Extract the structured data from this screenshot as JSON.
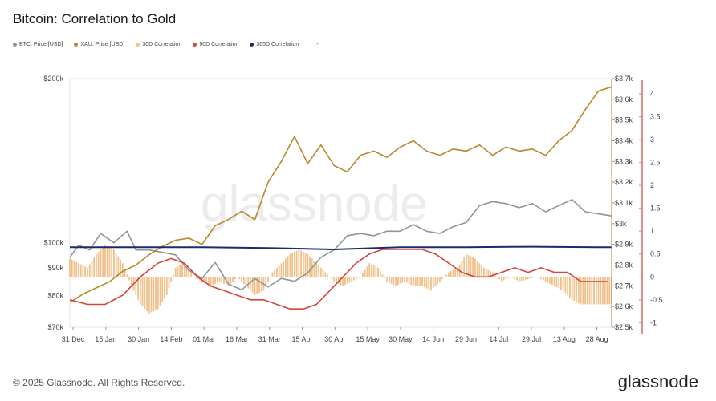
{
  "title": "Bitcoin: Correlation to Gold",
  "legend": [
    {
      "label": "BTC: Price [USD]",
      "color": "#8e969b"
    },
    {
      "label": "XAU: Price [USD]",
      "color": "#b8892a"
    },
    {
      "label": "30D Correlation",
      "color": "#f2c08a"
    },
    {
      "label": "90D Correlation",
      "color": "#d8433b"
    },
    {
      "label": "365D Correlation",
      "color": "#1c2b6e"
    },
    {
      "label": "-",
      "color": "transparent"
    }
  ],
  "watermark": "glassnode",
  "footer": "© 2025 Glassnode. All Rights Reserved.",
  "brand": "glassnode",
  "chart_data": {
    "type": "line",
    "x_ticks": [
      "31 Dec",
      "15 Jan",
      "30 Jan",
      "14 Feb",
      "01 Mar",
      "16 Mar",
      "31 Mar",
      "15 Apr",
      "30 Apr",
      "15 May",
      "30 May",
      "14 Jun",
      "29 Jun",
      "14 Jul",
      "29 Jul",
      "13 Aug",
      "28 Aug"
    ],
    "left_axis": {
      "scale": "log",
      "ticks": [
        "$70k",
        "$80k",
        "$90k",
        "$100k",
        "$200k"
      ],
      "tick_values": [
        70000,
        80000,
        90000,
        100000,
        200000
      ],
      "range": [
        70000,
        200000
      ]
    },
    "mid_axis": {
      "ticks": [
        "$2.5k",
        "$2.6k",
        "$2.7k",
        "$2.8k",
        "$2.9k",
        "$3k",
        "$3.1k",
        "$3.2k",
        "$3.3k",
        "$3.4k",
        "$3.5k",
        "$3.6k",
        "$3.7k"
      ],
      "range": [
        2500,
        3700
      ]
    },
    "right_axis": {
      "ticks": [
        "-1",
        "-0.5",
        "0",
        "0.5",
        "1",
        "1.5",
        "2",
        "2.5",
        "3",
        "3.5",
        "4"
      ],
      "range": [
        -1.1,
        4.3
      ]
    },
    "series": [
      {
        "name": "BTC: Price [USD]",
        "axis": "left",
        "color": "#8e969b",
        "points": [
          [
            0,
            94000
          ],
          [
            4,
            99000
          ],
          [
            9,
            97000
          ],
          [
            14,
            104000
          ],
          [
            20,
            100000
          ],
          [
            26,
            105000
          ],
          [
            30,
            97000
          ],
          [
            36,
            97000
          ],
          [
            42,
            96000
          ],
          [
            48,
            95000
          ],
          [
            54,
            89000
          ],
          [
            60,
            86000
          ],
          [
            66,
            92000
          ],
          [
            72,
            84000
          ],
          [
            78,
            82000
          ],
          [
            84,
            86000
          ],
          [
            90,
            83000
          ],
          [
            96,
            86000
          ],
          [
            102,
            85000
          ],
          [
            108,
            88000
          ],
          [
            114,
            94000
          ],
          [
            120,
            97000
          ],
          [
            126,
            103000
          ],
          [
            132,
            104000
          ],
          [
            138,
            103000
          ],
          [
            144,
            105000
          ],
          [
            150,
            105000
          ],
          [
            156,
            108000
          ],
          [
            162,
            105000
          ],
          [
            168,
            104000
          ],
          [
            174,
            107000
          ],
          [
            180,
            109000
          ],
          [
            186,
            117000
          ],
          [
            192,
            119000
          ],
          [
            198,
            118000
          ],
          [
            204,
            116000
          ],
          [
            210,
            118000
          ],
          [
            216,
            114000
          ],
          [
            222,
            117000
          ],
          [
            228,
            120000
          ],
          [
            234,
            114000
          ],
          [
            240,
            113000
          ],
          [
            246,
            112000
          ]
        ]
      },
      {
        "name": "XAU: Price [USD]",
        "axis": "mid",
        "color": "#b8892a",
        "points": [
          [
            0,
            2620
          ],
          [
            6,
            2660
          ],
          [
            12,
            2690
          ],
          [
            18,
            2720
          ],
          [
            24,
            2770
          ],
          [
            30,
            2800
          ],
          [
            36,
            2850
          ],
          [
            42,
            2890
          ],
          [
            48,
            2920
          ],
          [
            54,
            2930
          ],
          [
            60,
            2900
          ],
          [
            66,
            2990
          ],
          [
            72,
            3020
          ],
          [
            78,
            3060
          ],
          [
            84,
            3020
          ],
          [
            90,
            3200
          ],
          [
            96,
            3300
          ],
          [
            102,
            3420
          ],
          [
            108,
            3290
          ],
          [
            114,
            3380
          ],
          [
            120,
            3280
          ],
          [
            126,
            3250
          ],
          [
            132,
            3330
          ],
          [
            138,
            3350
          ],
          [
            144,
            3320
          ],
          [
            150,
            3370
          ],
          [
            156,
            3400
          ],
          [
            162,
            3350
          ],
          [
            168,
            3330
          ],
          [
            174,
            3360
          ],
          [
            180,
            3350
          ],
          [
            186,
            3380
          ],
          [
            192,
            3330
          ],
          [
            198,
            3370
          ],
          [
            204,
            3350
          ],
          [
            210,
            3360
          ],
          [
            216,
            3330
          ],
          [
            222,
            3400
          ],
          [
            228,
            3450
          ],
          [
            234,
            3550
          ],
          [
            240,
            3640
          ],
          [
            246,
            3660
          ]
        ]
      },
      {
        "name": "30D Correlation",
        "axis": "right",
        "color": "#f2c08a",
        "type": "bar",
        "points": [
          [
            0,
            0.4
          ],
          [
            4,
            0.3
          ],
          [
            8,
            0.2
          ],
          [
            12,
            0.5
          ],
          [
            16,
            0.7
          ],
          [
            20,
            0.6
          ],
          [
            24,
            0.3
          ],
          [
            28,
            -0.2
          ],
          [
            32,
            -0.6
          ],
          [
            36,
            -0.8
          ],
          [
            40,
            -0.7
          ],
          [
            44,
            -0.4
          ],
          [
            48,
            0.2
          ],
          [
            52,
            0.3
          ],
          [
            56,
            0.0
          ],
          [
            60,
            -0.1
          ],
          [
            64,
            -0.2
          ],
          [
            68,
            -0.1
          ],
          [
            72,
            -0.2
          ],
          [
            76,
            0.0
          ],
          [
            80,
            -0.2
          ],
          [
            84,
            -0.4
          ],
          [
            88,
            -0.3
          ],
          [
            92,
            0.1
          ],
          [
            96,
            0.3
          ],
          [
            100,
            0.5
          ],
          [
            104,
            0.6
          ],
          [
            108,
            0.5
          ],
          [
            112,
            0.3
          ],
          [
            116,
            0.1
          ],
          [
            120,
            -0.1
          ],
          [
            124,
            -0.2
          ],
          [
            128,
            -0.1
          ],
          [
            132,
            0.0
          ],
          [
            136,
            0.3
          ],
          [
            140,
            0.2
          ],
          [
            144,
            -0.1
          ],
          [
            148,
            -0.2
          ],
          [
            152,
            -0.1
          ],
          [
            156,
            -0.2
          ],
          [
            160,
            -0.2
          ],
          [
            164,
            -0.3
          ],
          [
            168,
            -0.1
          ],
          [
            172,
            0.1
          ],
          [
            176,
            0.2
          ],
          [
            180,
            0.5
          ],
          [
            184,
            0.4
          ],
          [
            188,
            0.2
          ],
          [
            192,
            0.1
          ],
          [
            196,
            -0.1
          ],
          [
            200,
            0.0
          ],
          [
            204,
            -0.1
          ],
          [
            208,
            -0.05
          ],
          [
            212,
            0.0
          ],
          [
            216,
            -0.1
          ],
          [
            220,
            -0.2
          ],
          [
            224,
            -0.3
          ],
          [
            228,
            -0.5
          ],
          [
            232,
            -0.6
          ],
          [
            236,
            -0.6
          ],
          [
            240,
            -0.6
          ],
          [
            246,
            -0.6
          ]
        ]
      },
      {
        "name": "90D Correlation",
        "axis": "right",
        "color": "#d8433b",
        "points": [
          [
            0,
            -0.5
          ],
          [
            8,
            -0.6
          ],
          [
            16,
            -0.6
          ],
          [
            24,
            -0.4
          ],
          [
            32,
            0.0
          ],
          [
            40,
            0.3
          ],
          [
            46,
            0.4
          ],
          [
            52,
            0.3
          ],
          [
            58,
            0.0
          ],
          [
            64,
            -0.2
          ],
          [
            70,
            -0.3
          ],
          [
            76,
            -0.4
          ],
          [
            82,
            -0.5
          ],
          [
            88,
            -0.5
          ],
          [
            94,
            -0.6
          ],
          [
            100,
            -0.7
          ],
          [
            106,
            -0.7
          ],
          [
            112,
            -0.6
          ],
          [
            118,
            -0.3
          ],
          [
            124,
            0.0
          ],
          [
            130,
            0.3
          ],
          [
            136,
            0.5
          ],
          [
            142,
            0.6
          ],
          [
            148,
            0.6
          ],
          [
            154,
            0.6
          ],
          [
            160,
            0.6
          ],
          [
            166,
            0.5
          ],
          [
            172,
            0.3
          ],
          [
            178,
            0.1
          ],
          [
            184,
            0.0
          ],
          [
            190,
            0.0
          ],
          [
            196,
            0.1
          ],
          [
            202,
            0.2
          ],
          [
            208,
            0.1
          ],
          [
            214,
            0.2
          ],
          [
            220,
            0.1
          ],
          [
            226,
            0.1
          ],
          [
            232,
            -0.1
          ],
          [
            238,
            -0.1
          ],
          [
            244,
            -0.1
          ]
        ]
      },
      {
        "name": "365D Correlation",
        "axis": "right",
        "color": "#1c2b6e",
        "points": [
          [
            0,
            0.65
          ],
          [
            30,
            0.65
          ],
          [
            60,
            0.65
          ],
          [
            90,
            0.63
          ],
          [
            120,
            0.6
          ],
          [
            150,
            0.65
          ],
          [
            180,
            0.65
          ],
          [
            210,
            0.66
          ],
          [
            240,
            0.65
          ],
          [
            246,
            0.65
          ]
        ]
      }
    ]
  }
}
